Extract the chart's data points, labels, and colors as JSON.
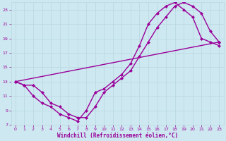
{
  "xlabel": "Windchill (Refroidissement éolien,°C)",
  "bg_color": "#cde8f0",
  "line_color": "#990099",
  "grid_color": "#b8d8e0",
  "xlim": [
    -0.5,
    23.5
  ],
  "ylim": [
    7,
    24
  ],
  "xticks": [
    0,
    1,
    2,
    3,
    4,
    5,
    6,
    7,
    8,
    9,
    10,
    11,
    12,
    13,
    14,
    15,
    16,
    17,
    18,
    19,
    20,
    21,
    22,
    23
  ],
  "yticks": [
    7,
    9,
    11,
    13,
    15,
    17,
    19,
    21,
    23
  ],
  "line1_x": [
    0,
    1,
    2,
    3,
    4,
    5,
    6,
    7,
    8,
    9,
    10,
    11,
    12,
    13,
    14,
    15,
    16,
    17,
    18,
    19,
    20,
    21,
    22,
    23
  ],
  "line1_y": [
    13.0,
    12.5,
    11.0,
    10.0,
    9.5,
    8.5,
    8.0,
    7.5,
    9.0,
    11.5,
    12.0,
    13.0,
    14.0,
    15.5,
    18.0,
    21.0,
    22.5,
    23.5,
    24.0,
    23.0,
    22.0,
    19.0,
    18.5,
    18.0
  ],
  "line2_x": [
    0,
    1,
    2,
    3,
    4,
    5,
    6,
    7,
    8,
    9,
    10,
    11,
    12,
    13,
    14,
    15,
    16,
    17,
    18,
    19,
    20,
    21,
    22,
    23
  ],
  "line2_y": [
    13.0,
    12.5,
    12.5,
    11.5,
    10.0,
    9.5,
    8.5,
    8.0,
    8.0,
    9.5,
    11.5,
    12.5,
    13.5,
    14.5,
    16.5,
    18.5,
    20.5,
    22.0,
    23.5,
    24.0,
    23.5,
    22.5,
    20.0,
    18.5
  ],
  "line3_x": [
    0,
    23
  ],
  "line3_y": [
    13.0,
    18.5
  ],
  "marker": "D",
  "markersize": 2.5,
  "linewidth": 1.0
}
